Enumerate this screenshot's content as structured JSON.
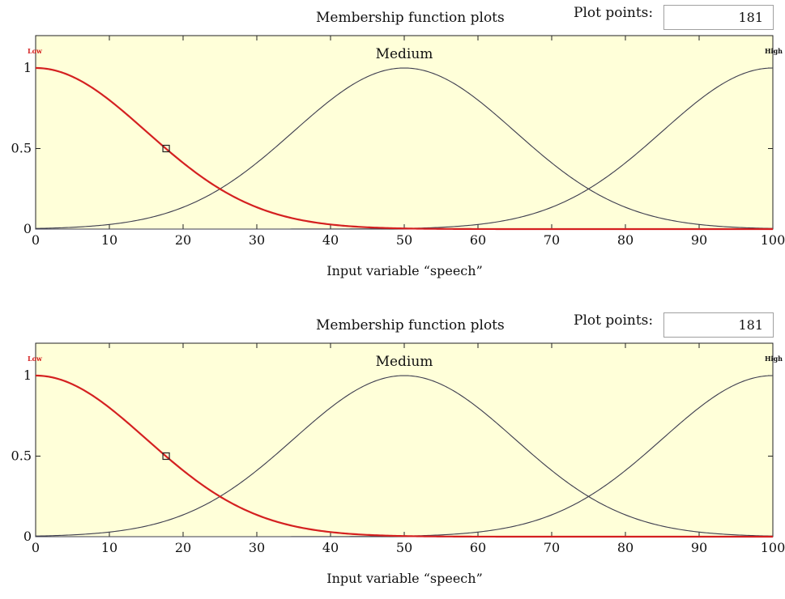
{
  "panels": [
    {
      "title": "Membership function plots",
      "plot_points_label": "Plot points:",
      "plot_points_value": "181"
    },
    {
      "title": "Membership function plots",
      "plot_points_label": "Plot points:",
      "plot_points_value": "181"
    }
  ],
  "colors": {
    "plot_background": "#ffffd9",
    "selected_mf": "#d42020",
    "mf_line": "#3c3c4e",
    "axis": "#222222"
  },
  "chart_data": [
    {
      "type": "line",
      "xlabel": "Input variable “speech”",
      "ylabel": "",
      "xlim": [
        0,
        100
      ],
      "ylim": [
        0,
        1
      ],
      "x_ticks": [
        0,
        10,
        20,
        30,
        40,
        50,
        60,
        70,
        80,
        90,
        100
      ],
      "y_ticks": [
        0,
        0.5,
        1
      ],
      "grid": false,
      "series": [
        {
          "name": "Low",
          "kind": "gaussian",
          "center": 0,
          "sigma": 15,
          "color": "#d42020",
          "selected": true
        },
        {
          "name": "Medium",
          "kind": "gaussian",
          "center": 50,
          "sigma": 15,
          "color": "#3c3c4e"
        },
        {
          "name": "High",
          "kind": "gaussian",
          "center": 100,
          "sigma": 15,
          "color": "#3c3c4e"
        }
      ],
      "marker": {
        "x": 17.7,
        "y": 0.5
      }
    },
    {
      "type": "line",
      "xlabel": "Input variable “speech”",
      "ylabel": "",
      "xlim": [
        0,
        100
      ],
      "ylim": [
        0,
        1
      ],
      "x_ticks": [
        0,
        10,
        20,
        30,
        40,
        50,
        60,
        70,
        80,
        90,
        100
      ],
      "y_ticks": [
        0,
        0.5,
        1
      ],
      "grid": false,
      "series": [
        {
          "name": "Low",
          "kind": "gaussian",
          "center": 0,
          "sigma": 15,
          "color": "#d42020",
          "selected": true
        },
        {
          "name": "Medium",
          "kind": "gaussian",
          "center": 50,
          "sigma": 15,
          "color": "#3c3c4e"
        },
        {
          "name": "High",
          "kind": "gaussian",
          "center": 100,
          "sigma": 15,
          "color": "#3c3c4e"
        }
      ],
      "marker": {
        "x": 17.7,
        "y": 0.5
      }
    }
  ]
}
